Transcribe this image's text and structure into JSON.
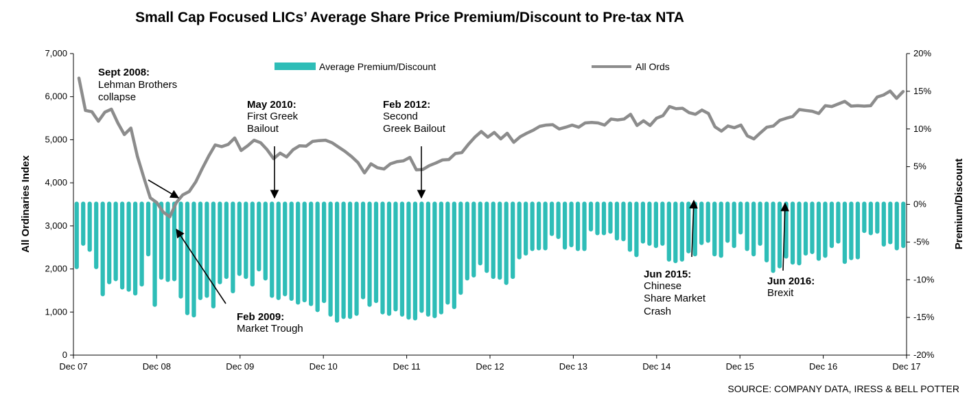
{
  "chart_data": {
    "type": "bar+line",
    "title": "Small Cap Focused LICs’ Average Share Price Premium/Discount to Pre-tax NTA",
    "ylabel_left": "All Ordinaries Index",
    "ylabel_right": "Premium/Discount",
    "ylim_left": [
      0,
      7000
    ],
    "ylim_right": [
      -20,
      20
    ],
    "left_ticks": [
      "0",
      "1,000",
      "2,000",
      "3,000",
      "4,000",
      "5,000",
      "6,000",
      "7,000"
    ],
    "right_ticks": [
      "-20%",
      "-15%",
      "-10%",
      "-5%",
      "0%",
      "5%",
      "10%",
      "15%",
      "20%"
    ],
    "x_tick_labels": [
      "Dec 07",
      "Dec 08",
      "Dec 09",
      "Dec 10",
      "Dec 11",
      "Dec 12",
      "Dec 13",
      "Dec 14",
      "Dec 15",
      "Dec 16",
      "Dec 17"
    ],
    "legend": {
      "bar_label": "Average Premium/Discount",
      "line_label": "All Ords",
      "position": "top"
    },
    "colors": {
      "bar": "#2EBDB7",
      "line": "#8C8C8C"
    },
    "series": [
      {
        "name": "Average Premium/Discount",
        "kind": "bar",
        "axis": "right",
        "unit": "%",
        "values": [
          -8.6,
          -5.5,
          -6.3,
          -8.6,
          -12.2,
          -10.6,
          -10.2,
          -11.3,
          -11.6,
          -12.1,
          -10.9,
          -6.9,
          -13.6,
          -10,
          -10.3,
          -10.2,
          -12.5,
          -14.7,
          -15,
          -12.7,
          -12.4,
          -13.8,
          -10.6,
          -9.9,
          -11.8,
          -9.5,
          -9.9,
          -10.9,
          -8.9,
          -10.1,
          -12.4,
          -12.7,
          -12.2,
          -12.8,
          -13.3,
          -13,
          -13.5,
          -14.3,
          -13.1,
          -14.9,
          -15.7,
          -15.2,
          -15.2,
          -14.8,
          -12.6,
          -13.6,
          -13.1,
          -14.6,
          -14.8,
          -14.2,
          -14.9,
          -15.3,
          -15.4,
          -14.4,
          -14.9,
          -15.1,
          -14.6,
          -13.3,
          -13.9,
          -12,
          -10.1,
          -9.7,
          -8.1,
          -9.1,
          -9.9,
          -10,
          -10.7,
          -9.9,
          -7.3,
          -6.8,
          -6.2,
          -6.1,
          -6.1,
          -4.2,
          -4.6,
          -6,
          -5.7,
          -6.2,
          -6.2,
          -3.6,
          -4.1,
          -4.1,
          -3.9,
          -4.8,
          -4.9,
          -6.3,
          -7,
          -5.2,
          -5.5,
          -5.8,
          -5.5,
          -7.6,
          -7.8,
          -7.6,
          -6.5,
          -6.9,
          -5.4,
          -5.1,
          -6.9,
          -7.1,
          -5.1,
          -5.8,
          -4,
          -6.2,
          -6.9,
          -5.5,
          -7.7,
          -9.1,
          -8.5,
          -7.2,
          -8,
          -8.1,
          -6.8,
          -6.6,
          -7.5,
          -7.1,
          -5.8,
          -5.2,
          -7.9,
          -7.4,
          -7.3,
          -3.8,
          -4.1,
          -3.9,
          -5.6,
          -5.3,
          -6.1,
          -5.8
        ]
      },
      {
        "name": "All Ords",
        "kind": "line",
        "axis": "left",
        "unit": "index",
        "values": [
          6430,
          5680,
          5650,
          5430,
          5640,
          5710,
          5390,
          5120,
          5270,
          4620,
          4120,
          3650,
          3540,
          3320,
          3210,
          3540,
          3720,
          3800,
          4020,
          4330,
          4620,
          4880,
          4840,
          4890,
          5040,
          4750,
          4860,
          4990,
          4930,
          4770,
          4560,
          4690,
          4600,
          4770,
          4860,
          4850,
          4960,
          4980,
          4990,
          4930,
          4830,
          4730,
          4610,
          4470,
          4230,
          4440,
          4350,
          4320,
          4440,
          4490,
          4510,
          4590,
          4300,
          4310,
          4400,
          4460,
          4530,
          4540,
          4680,
          4700,
          4890,
          5060,
          5190,
          5060,
          5170,
          5020,
          5150,
          4940,
          5070,
          5150,
          5220,
          5310,
          5340,
          5350,
          5250,
          5290,
          5340,
          5290,
          5390,
          5400,
          5390,
          5340,
          5480,
          5460,
          5480,
          5590,
          5330,
          5440,
          5330,
          5500,
          5560,
          5770,
          5720,
          5730,
          5630,
          5590,
          5690,
          5610,
          5300,
          5200,
          5320,
          5280,
          5340,
          5090,
          5020,
          5160,
          5290,
          5320,
          5450,
          5500,
          5540,
          5700,
          5680,
          5660,
          5610,
          5790,
          5770,
          5830,
          5890,
          5780,
          5790,
          5780,
          5790,
          5990,
          6040,
          6130,
          5960,
          6120
        ]
      }
    ],
    "annotations": [
      {
        "date": "Sept 2008:",
        "line1": "Lehman Brothers",
        "line2": "collapse"
      },
      {
        "date": "Feb 2009:",
        "line1": "Market Trough"
      },
      {
        "date": "May 2010:",
        "line1": "First Greek",
        "line2": "Bailout"
      },
      {
        "date": "Feb 2012:",
        "line1": "Second",
        "line2": "Greek Bailout"
      },
      {
        "date": "Jun 2015:",
        "line1": "Chinese",
        "line2": "Share Market",
        "line3": "Crash"
      },
      {
        "date": "Jun 2016:",
        "line1": "Brexit"
      }
    ],
    "source": "SOURCE: COMPANY DATA, IRESS & BELL POTTER"
  }
}
